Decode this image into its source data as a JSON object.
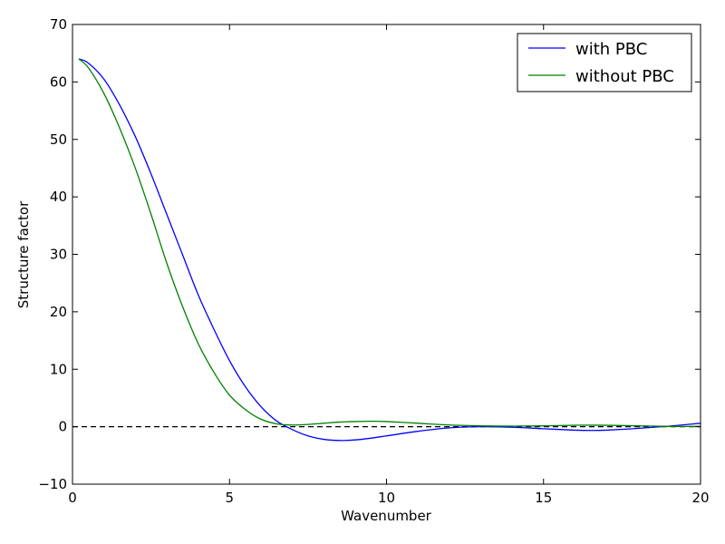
{
  "chart_data": {
    "type": "line",
    "title": "",
    "xlabel": "Wavenumber",
    "ylabel": "Structure factor",
    "xlim": [
      0,
      20
    ],
    "ylim": [
      -10,
      70
    ],
    "grid": false,
    "legend_position": "top-right",
    "x_ticks": [
      0,
      5,
      10,
      15,
      20
    ],
    "y_ticks": [
      -10,
      0,
      10,
      20,
      30,
      40,
      50,
      60,
      70
    ],
    "x_tick_labels": [
      "0",
      "5",
      "10",
      "15",
      "20"
    ],
    "y_tick_labels": [
      "−10",
      "0",
      "10",
      "20",
      "30",
      "40",
      "50",
      "60",
      "70"
    ],
    "reference_line": {
      "y": 0,
      "style": "dashed",
      "color": "#000000"
    },
    "series": [
      {
        "name": "with PBC",
        "color": "#0000ff",
        "x": [
          0.2,
          0.5,
          1,
          1.5,
          2,
          2.5,
          3,
          3.5,
          4,
          4.5,
          5,
          5.5,
          6,
          6.5,
          7,
          7.5,
          8,
          8.5,
          9,
          9.5,
          10,
          11,
          12,
          13,
          14,
          15,
          16,
          16.5,
          17,
          18,
          19,
          20
        ],
        "y": [
          64,
          63.3,
          60.5,
          56,
          50.5,
          44,
          37,
          30,
          23,
          17,
          11.5,
          7,
          3.5,
          1,
          -0.5,
          -1.6,
          -2.2,
          -2.4,
          -2.3,
          -2,
          -1.6,
          -0.8,
          -0.2,
          0,
          -0.1,
          -0.35,
          -0.6,
          -0.65,
          -0.6,
          -0.3,
          0.1,
          0.6
        ]
      },
      {
        "name": "without PBC",
        "color": "#008000",
        "x": [
          0.2,
          0.5,
          1,
          1.5,
          2,
          2.5,
          3,
          3.5,
          4,
          4.5,
          5,
          5.5,
          6,
          6.5,
          7,
          7.5,
          8,
          8.5,
          9,
          9.5,
          10,
          11,
          12,
          13,
          14,
          15,
          16,
          17,
          18,
          19,
          20
        ],
        "y": [
          64,
          62.5,
          58,
          52,
          45,
          37,
          28.5,
          21,
          14.5,
          9.5,
          5.5,
          3,
          1.3,
          0.5,
          0.3,
          0.4,
          0.6,
          0.8,
          0.9,
          0.95,
          0.9,
          0.6,
          0.3,
          0.15,
          0.1,
          0.15,
          0.25,
          0.25,
          0.15,
          0.05,
          0.05
        ]
      }
    ]
  }
}
